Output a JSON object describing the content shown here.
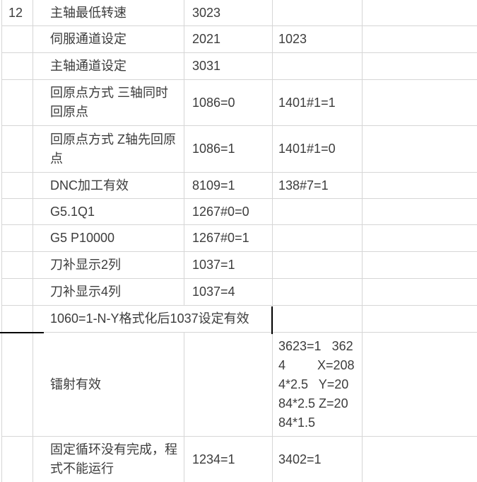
{
  "colors": {
    "background": "#ffffff",
    "grid_line": "#d6d6d6",
    "text": "#3c3c3c",
    "selection_border": "#000000"
  },
  "table": {
    "rows": [
      {
        "no": "12",
        "desc": "主轴最低转速",
        "p1": "3023",
        "p2": ""
      },
      {
        "no": "",
        "desc": "伺服通道设定",
        "p1": "2021",
        "p2": "1023"
      },
      {
        "no": "",
        "desc": "主轴通道设定",
        "p1": "3031",
        "p2": ""
      },
      {
        "no": "",
        "desc": "回原点方式 三轴同时回原点",
        "p1": "1086=0",
        "p2": "1401#1=1"
      },
      {
        "no": "",
        "desc": "回原点方式 Z轴先回原点",
        "p1": "1086=1",
        "p2": "1401#1=0"
      },
      {
        "no": "",
        "desc": "DNC加工有效",
        "p1": "8109=1",
        "p2": "138#7=1"
      },
      {
        "no": "",
        "desc": "G5.1Q1",
        "p1": "1267#0=0",
        "p2": ""
      },
      {
        "no": "",
        "desc": "G5 P10000",
        "p1": "1267#0=1",
        "p2": ""
      },
      {
        "no": "",
        "desc": "刀补显示2列",
        "p1": "1037=1",
        "p2": ""
      },
      {
        "no": "",
        "desc": "刀补显示4列",
        "p1": "1037=4",
        "p2": ""
      },
      {
        "no": "",
        "merged_desc": "1060=1-N-Y格式化后1037设定有效",
        "p2": ""
      },
      {
        "no": "",
        "desc": "镭射有效",
        "p1": "",
        "p2": "3623=1   362\n4         X=208\n4*2.5   Y=20\n84*2.5 Z=20\n84*1.5"
      },
      {
        "no": "",
        "desc": "固定循环没有完成，程式不能运行",
        "p1": "1234=1",
        "p2": "3402=1"
      }
    ]
  }
}
